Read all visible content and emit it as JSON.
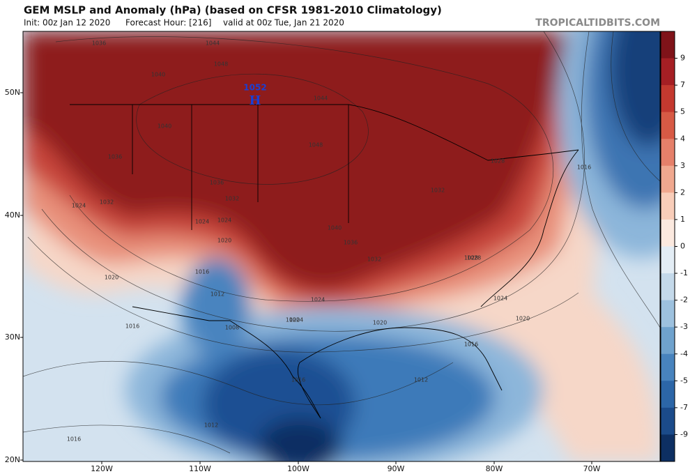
{
  "header": {
    "title": "GEM MSLP and Anomaly (hPa) (based on CFSR 1981-2010 Climatology)",
    "init": "Init: 00z Jan 12 2020",
    "forecast_hour": "Forecast Hour: [216]",
    "valid": "valid at 00z Tue, Jan 21 2020",
    "site": "TROPICALTIDBITS.COM"
  },
  "map": {
    "latitude_labels": [
      "50N",
      "40N",
      "30N",
      "20N"
    ],
    "longitude_labels": [
      "120W",
      "110W",
      "100W",
      "90W",
      "80W",
      "70W"
    ],
    "high_center": {
      "value": "1052",
      "letter": "H"
    },
    "isobar_labels": [
      "1036",
      "1044",
      "1048",
      "1040",
      "1044",
      "1040",
      "1036",
      "1048",
      "1028",
      "1016",
      "1024",
      "1032",
      "1036",
      "1032",
      "1024",
      "1024",
      "1020",
      "1032",
      "1040",
      "1036",
      "1032",
      "1028",
      "1024",
      "1020",
      "1020",
      "1016",
      "1012",
      "1008",
      "1020",
      "1016",
      "1024",
      "1020",
      "1016",
      "1016",
      "1012",
      "1012",
      "1016",
      "1024",
      "1028"
    ]
  },
  "colorbar": {
    "labels": [
      9,
      7,
      5,
      4,
      3,
      2,
      1,
      0,
      -1,
      -2,
      -3,
      -4,
      -5,
      -7,
      -9
    ]
  }
}
